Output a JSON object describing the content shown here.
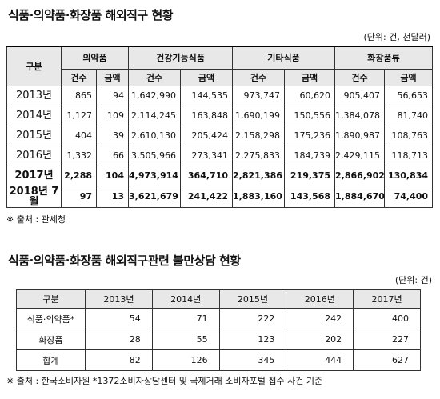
{
  "table1": {
    "title": "식품·의약품·화장품 해외직구 현황",
    "unit": "(단위: 건, 천달러)",
    "corner": "구분",
    "groups": [
      "의약품",
      "건강기능식품",
      "기타식품",
      "화장품류"
    ],
    "subheaders": [
      "건수",
      "금액",
      "건수",
      "금액",
      "건수",
      "금액",
      "건수",
      "금액"
    ],
    "rows": [
      {
        "label": "2013년",
        "cells": [
          "865",
          "94",
          "1,642,990",
          "144,535",
          "973,747",
          "60,620",
          "905,407",
          "56,653"
        ]
      },
      {
        "label": "2014년",
        "cells": [
          "1,127",
          "109",
          "2,114,245",
          "163,848",
          "1,690,199",
          "150,556",
          "1,384,078",
          "81,740"
        ]
      },
      {
        "label": "2015년",
        "cells": [
          "404",
          "39",
          "2,610,130",
          "205,424",
          "2,158,298",
          "175,236",
          "1,890,987",
          "108,763"
        ]
      },
      {
        "label": "2016년",
        "cells": [
          "1,332",
          "66",
          "3,505,966",
          "273,341",
          "2,275,833",
          "184,739",
          "2,429,115",
          "118,713"
        ]
      },
      {
        "label": "2017년",
        "cells": [
          "2,288",
          "104",
          "4,973,914",
          "364,710",
          "2,821,386",
          "219,375",
          "2,866,902",
          "130,834"
        ]
      },
      {
        "label": "2018년 7월",
        "cells": [
          "97",
          "13",
          "3,621,679",
          "241,422",
          "1,883,160",
          "143,568",
          "1,884,670",
          "74,400"
        ]
      }
    ],
    "source": "※ 출처 : 관세청"
  },
  "table2": {
    "title": "식품·의약품·화장품 해외직구관련 불만상담 현황",
    "unit": "(단위: 건)",
    "header": [
      "구분",
      "2013년",
      "2014년",
      "2015년",
      "2016년",
      "2017년"
    ],
    "rows": [
      {
        "label": "식품·의약품*",
        "cells": [
          "54",
          "71",
          "222",
          "242",
          "400"
        ]
      },
      {
        "label": "화장품",
        "cells": [
          "28",
          "55",
          "123",
          "202",
          "227"
        ]
      },
      {
        "label": "합계",
        "cells": [
          "82",
          "126",
          "345",
          "444",
          "627"
        ]
      }
    ],
    "source": "※ 출처 : 한국소비자원 *1372소비자상담센터 및 국제거래 소비자포털 접수 사건 기준"
  }
}
